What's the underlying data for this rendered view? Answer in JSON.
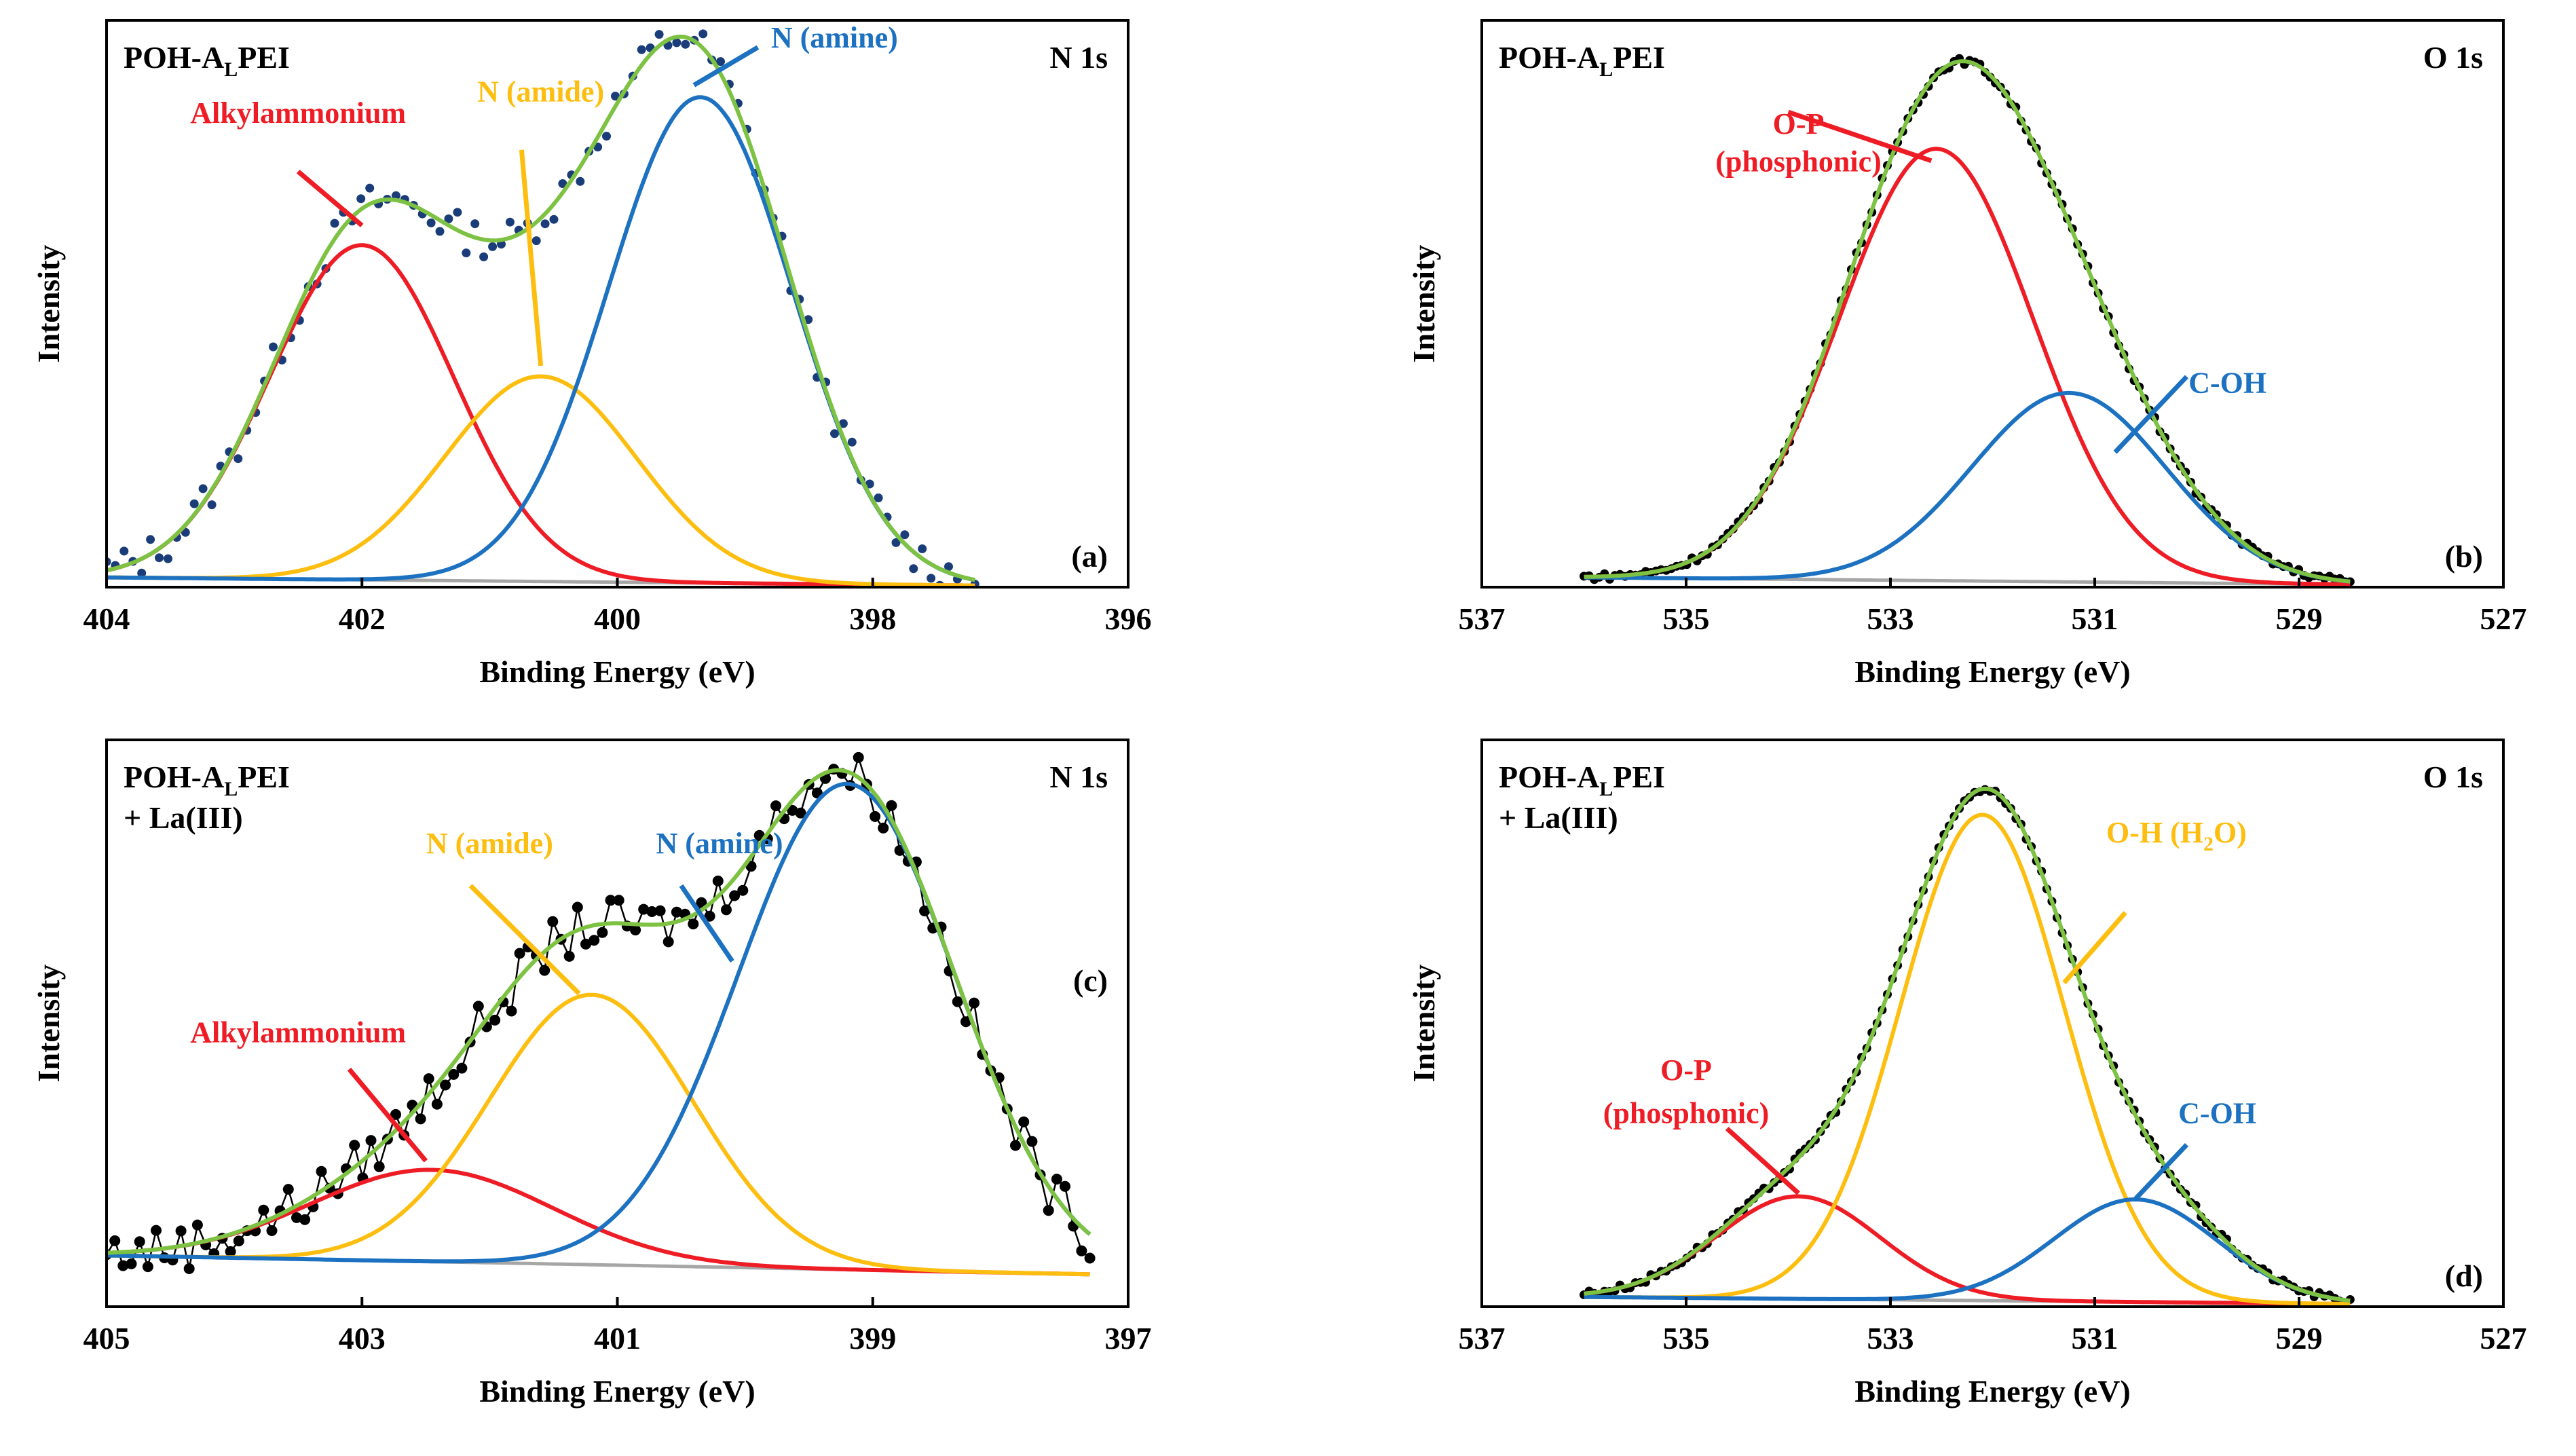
{
  "colors": {
    "red": "#ee1c25",
    "yellow": "#fdbe10",
    "blue": "#1c71c0",
    "green": "#7dc242",
    "gray": "#a6a6a6",
    "dots_a": "#1a3d7a",
    "dots": "#000000"
  },
  "chart_data": [
    {
      "id": "a",
      "type": "line",
      "panel_label": "(a)",
      "sample_label": "POH-ALPEI",
      "sample_label_main": "POH-A",
      "sample_label_sub": "L",
      "sample_label_tail": "PEI",
      "sample_label_line2": "",
      "region": "N 1s",
      "xlabel": "Binding Energy (eV)",
      "ylabel": "Intensity",
      "xlim": [
        404,
        396
      ],
      "xticks": [
        404,
        402,
        400,
        398,
        396
      ],
      "ylim": [
        0,
        1.05
      ],
      "data_range": [
        404,
        397.2
      ],
      "background": [
        0.018,
        0.003
      ],
      "peaks": [
        {
          "name": "Alkylammonium",
          "center": 402.0,
          "height": 0.62,
          "sigma": 0.72,
          "color": "red"
        },
        {
          "name": "N (amide)",
          "center": 400.6,
          "height": 0.38,
          "sigma": 0.75,
          "color": "yellow"
        },
        {
          "name": "N (amine)",
          "center": 399.35,
          "height": 0.9,
          "sigma": 0.72,
          "color": "blue"
        }
      ],
      "points_style": "dots",
      "point_color": "dots_a",
      "n_points": 100,
      "noise": 0.035,
      "annotations": [
        {
          "text": "Alkylammonium",
          "color": "red",
          "label_x": 402.5,
          "label_y": 0.86,
          "anchor": "middle",
          "line": [
            402.5,
            0.77,
            402.0,
            0.67
          ]
        },
        {
          "text": "N (amide)",
          "color": "yellow",
          "label_x": 400.6,
          "label_y": 0.9,
          "anchor": "middle",
          "line": [
            400.75,
            0.81,
            400.6,
            0.41
          ]
        },
        {
          "text": "N (amine)",
          "color": "blue",
          "label_x": 398.3,
          "label_y": 1.0,
          "anchor": "middle",
          "line": [
            398.9,
            1.0,
            399.4,
            0.93
          ]
        }
      ]
    },
    {
      "id": "b",
      "type": "line",
      "panel_label": "(b)",
      "sample_label": "POH-ALPEI",
      "sample_label_main": "POH-A",
      "sample_label_sub": "L",
      "sample_label_tail": "PEI",
      "sample_label_line2": "",
      "region": "O 1s",
      "xlabel": "Binding Energy (eV)",
      "ylabel": "Intensity",
      "xlim": [
        537,
        527
      ],
      "xticks": [
        537,
        535,
        533,
        531,
        529,
        527
      ],
      "ylim": [
        0,
        1.05
      ],
      "data_range": [
        536.0,
        528.5
      ],
      "background": [
        0.018,
        0.005
      ],
      "peaks": [
        {
          "name": "O-P (phosphonic)",
          "center": 532.55,
          "height": 0.8,
          "sigma": 0.95,
          "color": "red"
        },
        {
          "name": "C-OH",
          "center": 531.25,
          "height": 0.35,
          "sigma": 0.95,
          "color": "blue"
        }
      ],
      "points_style": "dots",
      "point_color": "dots",
      "n_points": 150,
      "noise": 0.006,
      "annotations": [
        {
          "text": "O-P",
          "color": "red",
          "label_x": 533.9,
          "label_y": 0.84,
          "anchor": "middle",
          "line": [
            534.0,
            0.88,
            532.6,
            0.79
          ]
        },
        {
          "text": "(phosphonic)",
          "color": "red",
          "label_x": 533.9,
          "label_y": 0.77,
          "anchor": "middle",
          "line": null
        },
        {
          "text": "C-OH",
          "color": "blue",
          "label_x": 529.7,
          "label_y": 0.36,
          "anchor": "middle",
          "line": [
            530.1,
            0.39,
            530.8,
            0.25
          ]
        }
      ]
    },
    {
      "id": "c",
      "type": "line",
      "panel_label": "(c)",
      "sample_label": "POH-ALPEI + La(III)",
      "sample_label_main": "POH-A",
      "sample_label_sub": "L",
      "sample_label_tail": "PEI",
      "sample_label_line2": "+ La(III)",
      "region": "N 1s",
      "xlabel": "Binding Energy (eV)",
      "ylabel": "Intensity",
      "xlim": [
        405,
        397
      ],
      "xticks": [
        405,
        403,
        401,
        399,
        397
      ],
      "ylim": [
        0,
        1.05
      ],
      "data_range": [
        405,
        397.3
      ],
      "background": [
        0.095,
        0.06
      ],
      "peaks": [
        {
          "name": "Alkylammonium",
          "center": 402.45,
          "height": 0.17,
          "sigma": 0.95,
          "color": "red"
        },
        {
          "name": "N (amide)",
          "center": 401.2,
          "height": 0.5,
          "sigma": 0.8,
          "color": "yellow"
        },
        {
          "name": "N (amine)",
          "center": 399.2,
          "height": 0.9,
          "sigma": 0.85,
          "color": "blue"
        }
      ],
      "points_style": "dots-line",
      "point_color": "dots",
      "n_points": 120,
      "noise": 0.045,
      "annotations": [
        {
          "text": "Alkylammonium",
          "color": "red",
          "label_x": 403.5,
          "label_y": 0.49,
          "anchor": "middle",
          "line": [
            403.1,
            0.44,
            402.5,
            0.27
          ]
        },
        {
          "text": "N (amide)",
          "color": "yellow",
          "label_x": 402.0,
          "label_y": 0.84,
          "anchor": "middle",
          "line": [
            402.15,
            0.78,
            401.3,
            0.58
          ]
        },
        {
          "text": "N (amine)",
          "color": "blue",
          "label_x": 400.2,
          "label_y": 0.84,
          "anchor": "middle",
          "line": [
            400.5,
            0.78,
            400.1,
            0.64
          ]
        }
      ]
    },
    {
      "id": "d",
      "type": "line",
      "panel_label": "(d)",
      "sample_label": "POH-ALPEI + La(III)",
      "sample_label_main": "POH-A",
      "sample_label_sub": "L",
      "sample_label_tail": "PEI",
      "sample_label_line2": "+ La(III)",
      "region": "O 1s",
      "xlabel": "Binding Energy (eV)",
      "ylabel": "Intensity",
      "xlim": [
        537,
        527
      ],
      "xticks": [
        537,
        535,
        533,
        531,
        529,
        527
      ],
      "ylim": [
        0,
        1.05
      ],
      "data_range": [
        536.0,
        528.5
      ],
      "background": [
        0.018,
        0.005
      ],
      "peaks": [
        {
          "name": "O-P (phosphonic)",
          "center": 533.9,
          "height": 0.19,
          "sigma": 0.8,
          "color": "red"
        },
        {
          "name": "O-H (H2O)",
          "center": 532.1,
          "height": 0.9,
          "sigma": 0.8,
          "color": "yellow"
        },
        {
          "name": "C-OH",
          "center": 530.6,
          "height": 0.19,
          "sigma": 0.8,
          "color": "blue"
        }
      ],
      "points_style": "dots",
      "point_color": "dots",
      "n_points": 150,
      "noise": 0.006,
      "annotations": [
        {
          "text": "O-P",
          "color": "red",
          "label_x": 535.0,
          "label_y": 0.42,
          "anchor": "middle",
          "line": [
            534.6,
            0.33,
            533.9,
            0.21
          ]
        },
        {
          "text": "(phosphonic)",
          "color": "red",
          "label_x": 535.0,
          "label_y": 0.34,
          "anchor": "middle",
          "line": null
        },
        {
          "text": "O-H (H2O)",
          "color": "yellow",
          "label_x": 530.2,
          "label_y": 0.86,
          "anchor": "middle",
          "line": [
            530.7,
            0.73,
            531.3,
            0.6
          ]
        },
        {
          "text": "C-OH",
          "color": "blue",
          "label_x": 529.8,
          "label_y": 0.34,
          "anchor": "middle",
          "line": [
            530.1,
            0.3,
            530.6,
            0.2
          ]
        }
      ]
    }
  ]
}
